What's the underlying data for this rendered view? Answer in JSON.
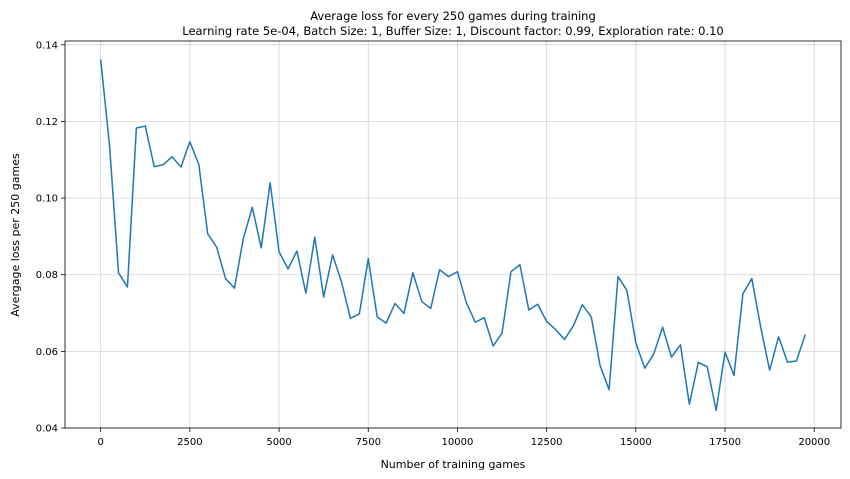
{
  "chart_data": {
    "type": "line",
    "title": "Average loss for every 250 games during training",
    "subtitle": "Learning rate 5e-04, Batch Size: 1, Buffer Size: 1, Discount factor: 0.99, Exploration rate: 0.10",
    "xlabel": "Number of training games",
    "ylabel": "Avergage loss per 250 games",
    "xlim": [
      -1000,
      20750
    ],
    "ylim": [
      0.04,
      0.141
    ],
    "grid": true,
    "x_ticks": [
      0,
      2500,
      5000,
      7500,
      10000,
      12500,
      15000,
      17500,
      20000
    ],
    "x_tick_labels": [
      "0",
      "2500",
      "5000",
      "7500",
      "10000",
      "12500",
      "15000",
      "17500",
      "20000"
    ],
    "y_ticks": [
      0.04,
      0.06,
      0.08,
      0.1,
      0.12,
      0.14
    ],
    "y_tick_labels": [
      "0.04",
      "0.06",
      "0.08",
      "0.10",
      "0.12",
      "0.14"
    ],
    "color": "#1f77b4",
    "x": [
      0,
      250,
      500,
      750,
      1000,
      1250,
      1500,
      1750,
      2000,
      2250,
      2500,
      2750,
      3000,
      3250,
      3500,
      3750,
      4000,
      4250,
      4500,
      4750,
      5000,
      5250,
      5500,
      5750,
      6000,
      6250,
      6500,
      6750,
      7000,
      7250,
      7500,
      7750,
      8000,
      8250,
      8500,
      8750,
      9000,
      9250,
      9500,
      9750,
      10000,
      10250,
      10500,
      10750,
      11000,
      11250,
      11500,
      11750,
      12000,
      12250,
      12500,
      12750,
      13000,
      13250,
      13500,
      13750,
      14000,
      14250,
      14500,
      14750,
      15000,
      15250,
      15500,
      15750,
      16000,
      16250,
      16500,
      16750,
      17000,
      17250,
      17500,
      17750,
      18000,
      18250,
      18500,
      18750,
      19000,
      19250,
      19500,
      19750
    ],
    "y": [
      0.1362,
      0.1135,
      0.0805,
      0.0768,
      0.1183,
      0.1188,
      0.1082,
      0.1087,
      0.1108,
      0.1081,
      0.1147,
      0.1088,
      0.0907,
      0.0872,
      0.079,
      0.0765,
      0.0895,
      0.0976,
      0.087,
      0.104,
      0.086,
      0.0815,
      0.0862,
      0.0752,
      0.0898,
      0.0742,
      0.0852,
      0.0781,
      0.0686,
      0.0698,
      0.0842,
      0.069,
      0.0674,
      0.0725,
      0.0699,
      0.0805,
      0.073,
      0.0712,
      0.0813,
      0.0795,
      0.0808,
      0.0727,
      0.0676,
      0.0688,
      0.0614,
      0.0648,
      0.0808,
      0.0826,
      0.0708,
      0.0723,
      0.0678,
      0.0657,
      0.0631,
      0.0667,
      0.0722,
      0.069,
      0.0562,
      0.05,
      0.0795,
      0.0759,
      0.0622,
      0.0556,
      0.0593,
      0.0663,
      0.0585,
      0.0617,
      0.0462,
      0.0571,
      0.056,
      0.0446,
      0.0598,
      0.0537,
      0.075,
      0.079,
      0.0663,
      0.0551,
      0.0638,
      0.0572,
      0.0575,
      0.0644
    ]
  }
}
